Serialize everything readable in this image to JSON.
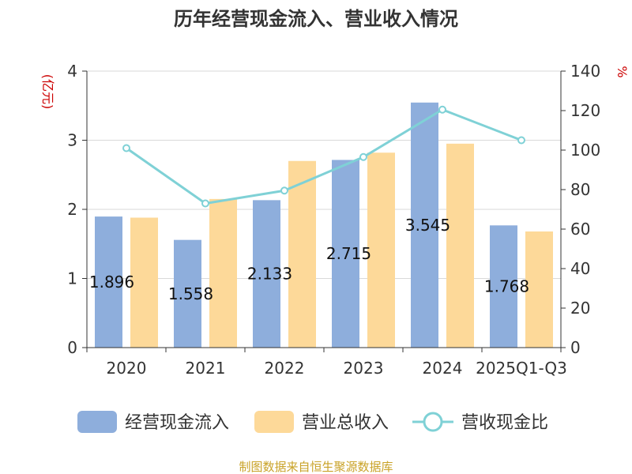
{
  "chart_data": {
    "type": "bar",
    "title": "历年经营现金流入、营业收入情况",
    "left_unit": "(亿元)",
    "right_unit": "%",
    "categories": [
      "2020",
      "2021",
      "2022",
      "2023",
      "2024",
      "2025Q1-Q3"
    ],
    "series": [
      {
        "name": "经营现金流入",
        "type": "bar",
        "axis": "left",
        "color": "#8eaedc",
        "values": [
          1.896,
          1.558,
          2.133,
          2.715,
          3.545,
          1.768
        ],
        "labels": [
          "1.896",
          "1.558",
          "2.133",
          "2.715",
          "3.545",
          "1.768"
        ]
      },
      {
        "name": "营业总收入",
        "type": "bar",
        "axis": "left",
        "color": "#fdd999",
        "values": [
          1.88,
          2.15,
          2.7,
          2.82,
          2.95,
          1.68
        ]
      },
      {
        "name": "营收现金比",
        "type": "line",
        "axis": "right",
        "color": "#7fd1d6",
        "values": [
          101,
          73,
          79.5,
          96.5,
          120.5,
          105
        ]
      }
    ],
    "left_axis": {
      "min": 0,
      "max": 4,
      "ticks": [
        "0",
        "1",
        "2",
        "3",
        "4"
      ]
    },
    "right_axis": {
      "min": 0,
      "max": 140,
      "ticks": [
        "0",
        "20",
        "40",
        "60",
        "80",
        "100",
        "120",
        "140"
      ]
    },
    "grid": true,
    "legend_position": "bottom"
  },
  "source_text": "制图数据来自恒生聚源数据库"
}
